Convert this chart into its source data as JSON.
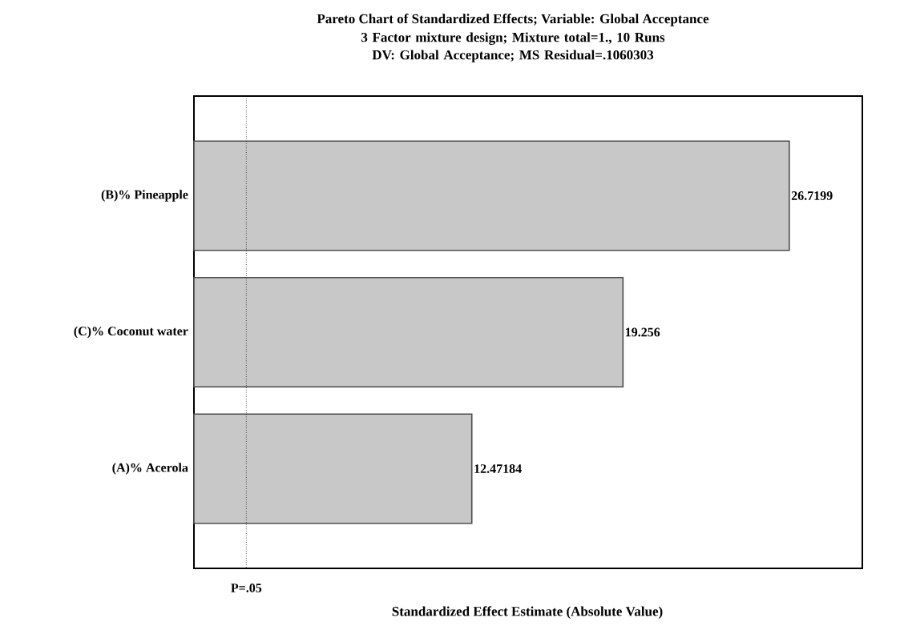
{
  "chart_data": {
    "type": "bar",
    "orientation": "horizontal",
    "title": "Pareto Chart of Standardized Effects; Variable: Global Acceptance",
    "subtitle": "3 Factor mixture design; Mixture total=1., 10 Runs\nDV: Global Acceptance; MS Residual=.1060303",
    "xlabel": "Standardized Effect Estimate (Absolute Value)",
    "categories": [
      "(B)% Pineapple",
      "(C)% Coconut water",
      "(A)% Acerola"
    ],
    "values": [
      26.7199,
      19.256,
      12.47184
    ],
    "color": "#c8c8c8",
    "xlim": [
      0,
      30
    ],
    "tick_labels": "y",
    "data_labels": true,
    "ref_lines": [
      {
        "axis": "x",
        "value": 2.35,
        "label": "P=.05",
        "line_style": "dotted"
      }
    ],
    "grid": false
  }
}
